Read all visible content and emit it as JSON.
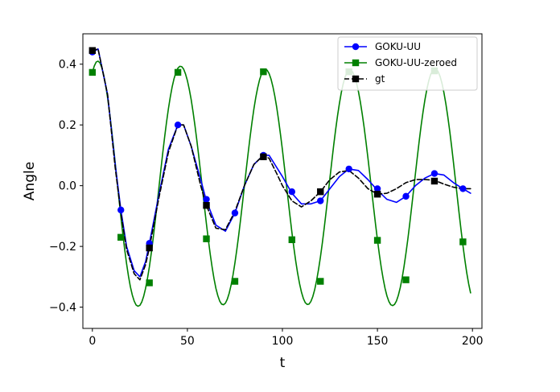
{
  "chart_data": {
    "type": "line",
    "title": "",
    "xlabel": "t",
    "ylabel": "Angle",
    "xlim": [
      -5,
      205
    ],
    "ylim": [
      -0.47,
      0.5
    ],
    "xticks": [
      0,
      50,
      100,
      150,
      200
    ],
    "yticks": [
      -0.4,
      -0.2,
      0.0,
      0.2,
      0.4
    ],
    "ytick_labels": [
      "−0.4",
      "−0.2",
      "0.0",
      "0.2",
      "0.4"
    ],
    "grid": false,
    "legend_position": "top-right",
    "series": [
      {
        "name": "GOKU-UU",
        "color": "#0000ff",
        "line_style": "solid",
        "marker": "circle",
        "x": [
          0,
          3,
          8,
          12,
          15,
          18,
          22,
          25,
          28,
          30,
          35,
          40,
          45,
          48,
          52,
          57,
          60,
          65,
          70,
          75,
          80,
          85,
          90,
          93,
          97,
          100,
          105,
          110,
          115,
          120,
          125,
          130,
          135,
          140,
          145,
          150,
          155,
          160,
          165,
          170,
          175,
          180,
          185,
          190,
          195,
          199
        ],
        "y": [
          0.44,
          0.45,
          0.3,
          0.07,
          -0.08,
          -0.2,
          -0.28,
          -0.3,
          -0.25,
          -0.19,
          -0.03,
          0.12,
          0.2,
          0.2,
          0.13,
          0.02,
          -0.05,
          -0.13,
          -0.15,
          -0.09,
          0.0,
          0.07,
          0.1,
          0.1,
          0.06,
          0.03,
          -0.025,
          -0.06,
          -0.06,
          -0.05,
          -0.01,
          0.03,
          0.055,
          0.05,
          0.02,
          -0.015,
          -0.045,
          -0.055,
          -0.035,
          0.0,
          0.025,
          0.04,
          0.035,
          0.01,
          -0.01,
          -0.025
        ],
        "marker_x": [
          0,
          15,
          30,
          45,
          60,
          75,
          90,
          105,
          120,
          135,
          150,
          165,
          180,
          195
        ],
        "marker_y": [
          0.44,
          -0.08,
          -0.19,
          0.2,
          -0.045,
          -0.09,
          0.1,
          -0.02,
          -0.05,
          0.055,
          -0.01,
          -0.035,
          0.04,
          -0.01
        ]
      },
      {
        "name": "GOKU-UU-zeroed",
        "color": "#008000",
        "line_style": "solid",
        "marker": "square",
        "x": [
          0,
          1,
          2,
          3,
          4,
          5,
          6,
          7,
          8,
          9,
          10,
          11,
          12,
          13,
          14,
          15,
          16,
          17,
          18,
          19,
          20,
          21,
          22,
          23,
          24,
          25,
          26,
          27,
          28,
          29,
          30,
          31,
          32,
          33,
          34,
          35,
          36,
          37,
          38,
          39,
          40,
          41,
          42,
          43,
          44,
          45,
          46,
          47,
          48,
          49,
          50,
          51,
          52,
          53,
          54,
          55,
          56,
          57,
          58,
          59,
          60,
          61,
          62,
          63,
          64,
          65,
          66,
          67,
          68,
          69,
          70,
          71,
          72,
          73,
          74,
          75,
          76,
          77,
          78,
          79,
          80,
          81,
          82,
          83,
          84,
          85,
          86,
          87,
          88,
          89,
          90,
          91,
          92,
          93,
          94,
          95,
          96,
          97,
          98,
          99,
          100,
          101,
          102,
          103,
          104,
          105,
          106,
          107,
          108,
          109,
          110,
          111,
          112,
          113,
          114,
          115,
          116,
          117,
          118,
          119,
          120,
          121,
          122,
          123,
          124,
          125,
          126,
          127,
          128,
          129,
          130,
          131,
          132,
          133,
          134,
          135,
          136,
          137,
          138,
          139,
          140,
          141,
          142,
          143,
          144,
          145,
          146,
          147,
          148,
          149,
          150,
          151,
          152,
          153,
          154,
          155,
          156,
          157,
          158,
          159,
          160,
          161,
          162,
          163,
          164,
          165,
          166,
          167,
          168,
          169,
          170,
          171,
          172,
          173,
          174,
          175,
          176,
          177,
          178,
          179,
          180,
          181,
          182,
          183,
          184,
          185,
          186,
          187,
          188,
          189,
          190,
          191,
          192,
          193,
          194,
          195,
          196,
          197,
          198,
          199
        ],
        "y": [
          0.373,
          0.394,
          0.407,
          0.41,
          0.404,
          0.388,
          0.363,
          0.33,
          0.29,
          0.243,
          0.191,
          0.135,
          0.076,
          0.016,
          -0.044,
          -0.103,
          -0.158,
          -0.21,
          -0.257,
          -0.298,
          -0.333,
          -0.36,
          -0.38,
          -0.393,
          -0.397,
          -0.394,
          -0.383,
          -0.364,
          -0.338,
          -0.305,
          -0.267,
          -0.222,
          -0.173,
          -0.12,
          -0.065,
          -0.007,
          0.05,
          0.106,
          0.159,
          0.208,
          0.253,
          0.292,
          0.326,
          0.353,
          0.373,
          0.387,
          0.393,
          0.392,
          0.384,
          0.368,
          0.346,
          0.317,
          0.283,
          0.242,
          0.197,
          0.148,
          0.096,
          0.041,
          -0.015,
          -0.071,
          -0.125,
          -0.177,
          -0.225,
          -0.268,
          -0.306,
          -0.338,
          -0.362,
          -0.38,
          -0.39,
          -0.392,
          -0.387,
          -0.374,
          -0.354,
          -0.327,
          -0.294,
          -0.255,
          -0.211,
          -0.163,
          -0.111,
          -0.057,
          -0.001,
          0.055,
          0.109,
          0.161,
          0.209,
          0.253,
          0.291,
          0.323,
          0.349,
          0.368,
          0.38,
          0.384,
          0.38,
          0.369,
          0.351,
          0.326,
          0.295,
          0.258,
          0.215,
          0.168,
          0.118,
          0.064,
          0.009,
          -0.046,
          -0.101,
          -0.154,
          -0.203,
          -0.248,
          -0.288,
          -0.322,
          -0.35,
          -0.371,
          -0.385,
          -0.391,
          -0.39,
          -0.381,
          -0.365,
          -0.342,
          -0.312,
          -0.276,
          -0.235,
          -0.189,
          -0.139,
          -0.086,
          -0.031,
          0.025,
          0.08,
          0.134,
          0.184,
          0.23,
          0.271,
          0.307,
          0.336,
          0.358,
          0.373,
          0.381,
          0.381,
          0.374,
          0.359,
          0.338,
          0.31,
          0.276,
          0.236,
          0.192,
          0.143,
          0.091,
          0.037,
          -0.018,
          -0.073,
          -0.127,
          -0.178,
          -0.226,
          -0.269,
          -0.306,
          -0.338,
          -0.363,
          -0.381,
          -0.392,
          -0.395,
          -0.391,
          -0.38,
          -0.361,
          -0.336,
          -0.304,
          -0.266,
          -0.223,
          -0.176,
          -0.125,
          -0.071,
          -0.016,
          0.04,
          0.095,
          0.148,
          0.198,
          0.243,
          0.283,
          0.317,
          0.345,
          0.366,
          0.379,
          0.385,
          0.384,
          0.375,
          0.359,
          0.336,
          0.306,
          0.27,
          0.228,
          0.182,
          0.131,
          0.077,
          0.021,
          -0.036,
          -0.092,
          -0.146,
          -0.197,
          -0.244,
          -0.287,
          -0.323,
          -0.353
        ],
        "marker_x": [
          0,
          15,
          30,
          45,
          60,
          75,
          90,
          105,
          120,
          135,
          150,
          165,
          180,
          195
        ],
        "marker_y": [
          0.373,
          -0.17,
          -0.32,
          0.373,
          -0.175,
          -0.315,
          0.375,
          -0.178,
          -0.315,
          0.375,
          -0.18,
          -0.31,
          0.378,
          -0.185
        ]
      },
      {
        "name": "gt",
        "color": "#000000",
        "line_style": "dashed",
        "marker": "square",
        "x": [
          0,
          3,
          8,
          12,
          15,
          18,
          22,
          25,
          28,
          30,
          35,
          40,
          45,
          48,
          52,
          57,
          60,
          65,
          70,
          75,
          80,
          85,
          90,
          93,
          97,
          100,
          105,
          110,
          115,
          120,
          125,
          130,
          135,
          140,
          145,
          150,
          155,
          160,
          165,
          170,
          175,
          180,
          185,
          190,
          195,
          199
        ],
        "y": [
          0.445,
          0.45,
          0.3,
          0.06,
          -0.09,
          -0.21,
          -0.29,
          -0.31,
          -0.26,
          -0.205,
          -0.04,
          0.11,
          0.2,
          0.2,
          0.13,
          0.0,
          -0.065,
          -0.14,
          -0.145,
          -0.085,
          0.0,
          0.07,
          0.1,
          0.09,
          0.04,
          0.0,
          -0.05,
          -0.07,
          -0.05,
          -0.02,
          0.02,
          0.045,
          0.05,
          0.025,
          -0.01,
          -0.028,
          -0.025,
          -0.01,
          0.01,
          0.02,
          0.02,
          0.018,
          0.005,
          -0.005,
          -0.01,
          -0.01
        ],
        "marker_x": [
          0,
          30,
          60,
          90,
          120,
          150,
          180
        ],
        "marker_y": [
          0.445,
          -0.205,
          -0.065,
          0.095,
          -0.02,
          -0.028,
          0.015
        ]
      }
    ]
  }
}
